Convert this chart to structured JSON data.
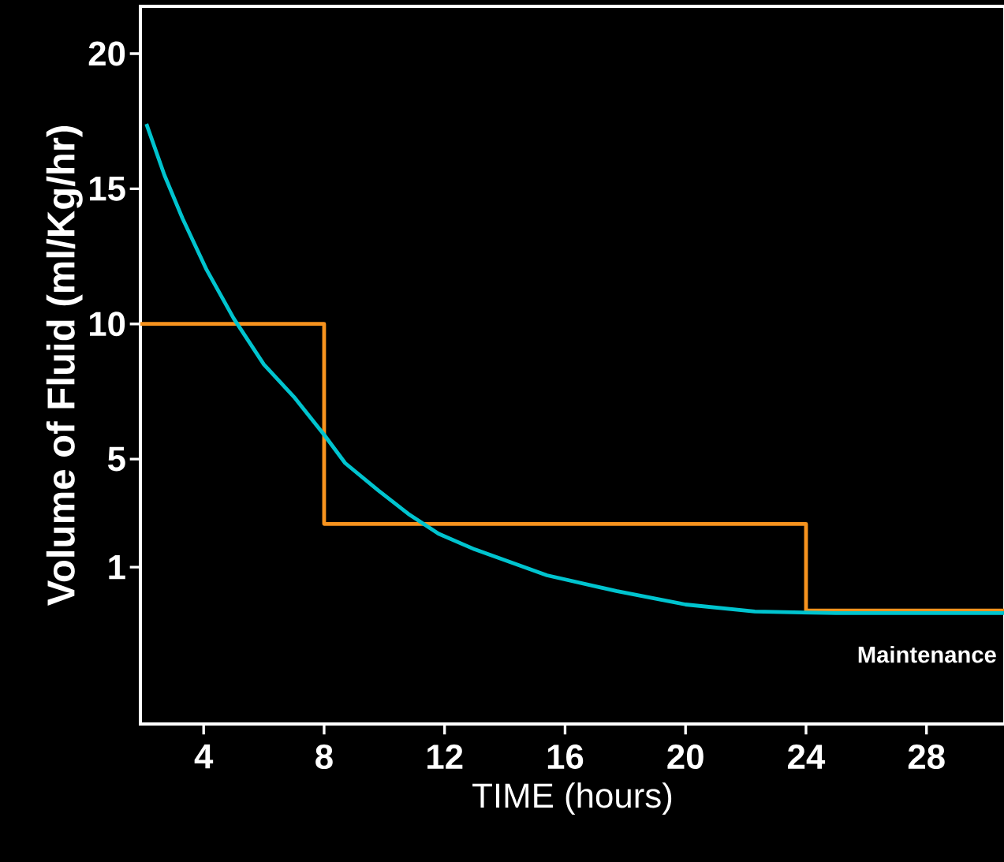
{
  "chart_data": {
    "type": "line",
    "xlabel": "TIME (hours)",
    "ylabel": "Volume of Fluid (ml/Kg/hr)",
    "xlim": [
      1.9,
      30.6
    ],
    "ylim": [
      -4.8,
      21.75
    ],
    "xticks": [
      4,
      8,
      12,
      16,
      20,
      24,
      28
    ],
    "yticks": [
      1,
      5,
      10,
      15,
      20
    ],
    "annotations": [
      "Maintenance"
    ],
    "series": [
      {
        "type": "step",
        "color": "#f7931e",
        "x": [
          1.9,
          8,
          24,
          30.6
        ],
        "values": [
          10,
          2.6,
          -0.6,
          -0.6
        ]
      },
      {
        "type": "line",
        "color": "#00c4cf",
        "x": [
          2.1,
          2.7,
          3.3,
          4.1,
          5,
          6,
          7,
          8,
          8.7,
          9.8,
          10.8,
          11.8,
          13,
          15.4,
          17.7,
          20,
          22.3,
          25,
          30.6
        ],
        "values": [
          17.4,
          15.5,
          13.9,
          12.0,
          10.2,
          8.5,
          7.3,
          5.9,
          4.85,
          3.84,
          2.97,
          2.24,
          1.66,
          0.7,
          0.12,
          -0.38,
          -0.64,
          -0.7,
          -0.7
        ]
      }
    ]
  }
}
